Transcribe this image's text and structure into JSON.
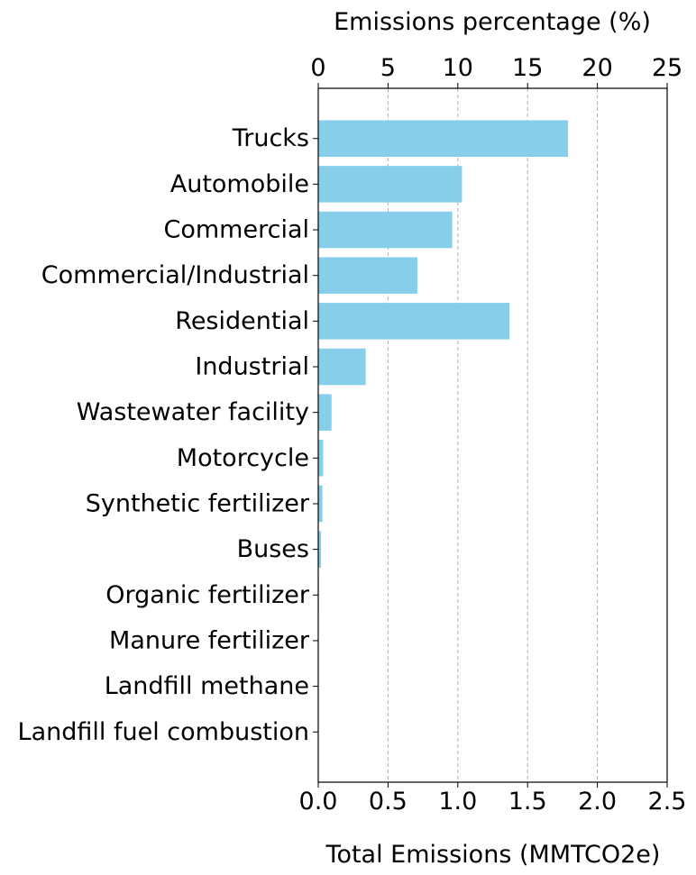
{
  "chart_data": {
    "type": "bar",
    "orientation": "horizontal",
    "categories": [
      "Trucks",
      "Automobile",
      "Commercial",
      "Commercial/Industrial",
      "Residential",
      "Industrial",
      "Wastewater facility",
      "Motorcycle",
      "Synthetic fertilizer",
      "Buses",
      "Organic fertilizer",
      "Manure fertilizer",
      "Landfill methane",
      "Landfill fuel combustion"
    ],
    "values": [
      1.79,
      1.03,
      0.96,
      0.71,
      1.37,
      0.34,
      0.095,
      0.035,
      0.03,
      0.02,
      0.004,
      0.003,
      0.002,
      0.001
    ],
    "xlabel": "Total Emissions (MMTCO2e)",
    "x2label": "Emissions percentage (%)",
    "xlim": [
      0,
      2.5
    ],
    "x2lim": [
      0,
      25
    ],
    "xticks": [
      "0.0",
      "0.5",
      "1.0",
      "1.5",
      "2.0",
      "2.5"
    ],
    "x2ticks": [
      "0",
      "5",
      "10",
      "15",
      "20",
      "25"
    ],
    "grid": "x-dashed",
    "colors": {
      "bar": "#87CEEB",
      "grid": "#b0b0b0",
      "axis": "#000000"
    }
  }
}
